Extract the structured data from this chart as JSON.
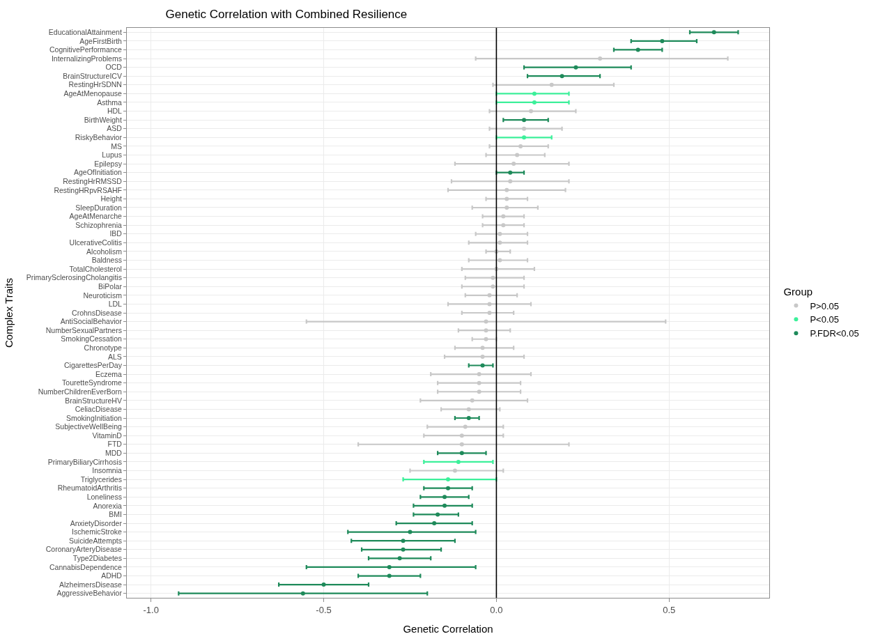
{
  "chart_data": {
    "type": "scatter",
    "orientation": "horizontal",
    "title": "Genetic Correlation with Combined Resilience",
    "xlabel": "Genetic Correlation",
    "ylabel": "Complex Traits",
    "legend_title": "Group",
    "legend": "right",
    "grid": true,
    "marker": "circle",
    "categories": [
      "EducationalAttainment",
      "AgeFirstBirth",
      "CognitivePerformance",
      "InternalizingProblems",
      "OCD",
      "BrainStructureICV",
      "RestingHrSDNN",
      "AgeAtMenopause",
      "Asthma",
      "HDL",
      "BirthWeight",
      "ASD",
      "RiskyBehavior",
      "MS",
      "Lupus",
      "Epilepsy",
      "AgeOfInitiation",
      "RestingHrRMSSD",
      "RestingHRpvRSAHF",
      "Height",
      "SleepDuration",
      "AgeAtMenarche",
      "Schizophrenia",
      "IBD",
      "UlcerativeColitis",
      "Alcoholism",
      "Baldness",
      "TotalCholesterol",
      "PrimarySclerosingCholangitis",
      "BiPolar",
      "Neuroticism",
      "LDL",
      "CrohnsDisease",
      "AntiSocialBehavior",
      "NumberSexualPartners",
      "SmokingCessation",
      "Chronotype",
      "ALS",
      "CigarettesPerDay",
      "Eczema",
      "TouretteSyndrome",
      "NumberChildrenEverBorn",
      "BrainStructureHV",
      "CeliacDisease",
      "SmokingInitiation",
      "SubjectiveWellBeing",
      "VitaminD",
      "FTD",
      "MDD",
      "PrimaryBiliaryCirrhosis",
      "Insomnia",
      "Triglycerides",
      "RheumatoidArthritis",
      "Loneliness",
      "Anorexia",
      "BMI",
      "AnxietyDisorder",
      "IschemicStroke",
      "SuicideAttempts",
      "CoronaryArteryDisease",
      "Type2Diabetes",
      "CannabisDependence",
      "ADHD",
      "AlzheimersDisease",
      "AggressiveBehavior"
    ],
    "xlim": [
      -1.07,
      0.79
    ],
    "xticks": [
      {
        "value": -1,
        "label": "-1.0"
      },
      {
        "value": -0.5,
        "label": "-0.5"
      },
      {
        "value": 0,
        "label": "0.0"
      },
      {
        "value": 0.5,
        "label": "0.5"
      }
    ],
    "ref_lines": [
      {
        "axis": "x",
        "value": 0,
        "color": "#000000"
      }
    ],
    "series": [
      {
        "name": "P>0.05",
        "color": "#c8c8c8",
        "values": [
          null,
          null,
          null,
          0.3,
          null,
          null,
          0.16,
          null,
          null,
          0.1,
          null,
          0.08,
          null,
          0.07,
          0.06,
          0.05,
          null,
          0.04,
          0.03,
          0.03,
          0.03,
          0.02,
          0.02,
          0.01,
          0.01,
          0.0,
          0.01,
          0.0,
          -0.01,
          -0.01,
          -0.02,
          -0.02,
          -0.02,
          -0.03,
          -0.03,
          -0.03,
          -0.04,
          -0.04,
          null,
          -0.05,
          -0.05,
          -0.05,
          -0.07,
          -0.08,
          null,
          -0.09,
          -0.1,
          -0.1,
          null,
          null,
          -0.12,
          null,
          null,
          null,
          null,
          null,
          null,
          null,
          null,
          null,
          null,
          null,
          null,
          null,
          null
        ],
        "errors": [
          null,
          null,
          null,
          [
            -0.06,
            0.67
          ],
          null,
          null,
          [
            -0.01,
            0.34
          ],
          null,
          null,
          [
            -0.02,
            0.23
          ],
          null,
          [
            -0.02,
            0.19
          ],
          null,
          [
            -0.02,
            0.15
          ],
          [
            -0.03,
            0.14
          ],
          [
            -0.12,
            0.21
          ],
          null,
          [
            -0.13,
            0.21
          ],
          [
            -0.14,
            0.2
          ],
          [
            -0.03,
            0.09
          ],
          [
            -0.07,
            0.12
          ],
          [
            -0.04,
            0.08
          ],
          [
            -0.04,
            0.08
          ],
          [
            -0.06,
            0.09
          ],
          [
            -0.08,
            0.09
          ],
          [
            -0.03,
            0.04
          ],
          [
            -0.08,
            0.09
          ],
          [
            -0.1,
            0.11
          ],
          [
            -0.09,
            0.08
          ],
          [
            -0.1,
            0.08
          ],
          [
            -0.09,
            0.06
          ],
          [
            -0.14,
            0.1
          ],
          [
            -0.1,
            0.05
          ],
          [
            -0.55,
            0.49
          ],
          [
            -0.11,
            0.04
          ],
          [
            -0.07,
            0.0
          ],
          [
            -0.12,
            0.05
          ],
          [
            -0.15,
            0.08
          ],
          null,
          [
            -0.19,
            0.1
          ],
          [
            -0.17,
            0.07
          ],
          [
            -0.17,
            0.07
          ],
          [
            -0.22,
            0.09
          ],
          [
            -0.16,
            0.01
          ],
          null,
          [
            -0.2,
            0.02
          ],
          [
            -0.21,
            0.02
          ],
          [
            -0.4,
            0.21
          ],
          null,
          null,
          [
            -0.25,
            0.02
          ],
          null,
          null,
          null,
          null,
          null,
          null,
          null,
          null,
          null,
          null,
          null,
          null,
          null,
          null
        ]
      },
      {
        "name": "P<0.05",
        "color": "#3cf09a",
        "values": [
          null,
          null,
          null,
          null,
          null,
          null,
          null,
          0.11,
          0.11,
          null,
          null,
          null,
          0.08,
          null,
          null,
          null,
          null,
          null,
          null,
          null,
          null,
          null,
          null,
          null,
          null,
          null,
          null,
          null,
          null,
          null,
          null,
          null,
          null,
          null,
          null,
          null,
          null,
          null,
          null,
          null,
          null,
          null,
          null,
          null,
          null,
          null,
          null,
          null,
          null,
          -0.11,
          null,
          -0.14,
          null,
          null,
          null,
          null,
          null,
          null,
          null,
          null,
          null,
          null,
          null,
          null,
          null
        ],
        "errors": [
          null,
          null,
          null,
          null,
          null,
          null,
          null,
          [
            0.0,
            0.21
          ],
          [
            0.0,
            0.21
          ],
          null,
          null,
          null,
          [
            0.0,
            0.16
          ],
          null,
          null,
          null,
          null,
          null,
          null,
          null,
          null,
          null,
          null,
          null,
          null,
          null,
          null,
          null,
          null,
          null,
          null,
          null,
          null,
          null,
          null,
          null,
          null,
          null,
          null,
          null,
          null,
          null,
          null,
          null,
          null,
          null,
          null,
          null,
          null,
          [
            -0.21,
            -0.01
          ],
          null,
          [
            -0.27,
            0.0
          ],
          null,
          null,
          null,
          null,
          null,
          null,
          null,
          null,
          null,
          null,
          null,
          null,
          null
        ]
      },
      {
        "name": "P.FDR<0.05",
        "color": "#1e8a5a",
        "values": [
          0.63,
          0.48,
          0.41,
          null,
          0.23,
          0.19,
          null,
          null,
          null,
          null,
          0.08,
          null,
          null,
          null,
          null,
          null,
          0.04,
          null,
          null,
          null,
          null,
          null,
          null,
          null,
          null,
          null,
          null,
          null,
          null,
          null,
          null,
          null,
          null,
          null,
          null,
          null,
          null,
          null,
          -0.04,
          null,
          null,
          null,
          null,
          null,
          -0.08,
          null,
          null,
          null,
          -0.1,
          null,
          null,
          null,
          -0.14,
          -0.15,
          -0.15,
          -0.17,
          -0.18,
          -0.25,
          -0.27,
          -0.27,
          -0.28,
          -0.31,
          -0.31,
          -0.5,
          -0.56
        ],
        "errors": [
          [
            0.56,
            0.7
          ],
          [
            0.39,
            0.58
          ],
          [
            0.34,
            0.48
          ],
          null,
          [
            0.08,
            0.39
          ],
          [
            0.09,
            0.3
          ],
          null,
          null,
          null,
          null,
          [
            0.02,
            0.15
          ],
          null,
          null,
          null,
          null,
          null,
          [
            0.0,
            0.08
          ],
          null,
          null,
          null,
          null,
          null,
          null,
          null,
          null,
          null,
          null,
          null,
          null,
          null,
          null,
          null,
          null,
          null,
          null,
          null,
          null,
          null,
          [
            -0.08,
            -0.01
          ],
          null,
          null,
          null,
          null,
          null,
          [
            -0.12,
            -0.05
          ],
          null,
          null,
          null,
          [
            -0.17,
            -0.03
          ],
          null,
          null,
          null,
          [
            -0.21,
            -0.07
          ],
          [
            -0.22,
            -0.08
          ],
          [
            -0.24,
            -0.07
          ],
          [
            -0.24,
            -0.11
          ],
          [
            -0.29,
            -0.07
          ],
          [
            -0.43,
            -0.06
          ],
          [
            -0.42,
            -0.12
          ],
          [
            -0.39,
            -0.16
          ],
          [
            -0.37,
            -0.19
          ],
          [
            -0.55,
            -0.06
          ],
          [
            -0.4,
            -0.22
          ],
          [
            -0.63,
            -0.37
          ],
          [
            -0.92,
            -0.2
          ]
        ]
      }
    ]
  }
}
